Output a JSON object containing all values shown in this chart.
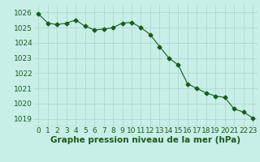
{
  "x": [
    0,
    1,
    2,
    3,
    4,
    5,
    6,
    7,
    8,
    9,
    10,
    11,
    12,
    13,
    14,
    15,
    16,
    17,
    18,
    19,
    20,
    21,
    22,
    23
  ],
  "y": [
    1025.9,
    1025.3,
    1025.2,
    1025.3,
    1025.5,
    1025.1,
    1024.85,
    1024.9,
    1025.0,
    1025.3,
    1025.35,
    1025.0,
    1024.55,
    1023.75,
    1023.0,
    1022.55,
    1021.3,
    1021.0,
    1020.7,
    1020.5,
    1020.4,
    1019.65,
    1019.45,
    1019.05
  ],
  "line_color": "#1a5c1a",
  "marker": "D",
  "marker_size": 2.5,
  "bg_color": "#c8eee8",
  "grid_color": "#aed4ce",
  "xlabel": "Graphe pression niveau de la mer (hPa)",
  "xlabel_fontsize": 7.5,
  "xlabel_color": "#1a5c1a",
  "tick_label_fontsize": 6.5,
  "tick_label_color": "#1a5c1a",
  "ylim": [
    1018.5,
    1026.5
  ],
  "yticks": [
    1019,
    1020,
    1021,
    1022,
    1023,
    1024,
    1025,
    1026
  ],
  "xlim": [
    -0.5,
    23.5
  ],
  "xticks": [
    0,
    1,
    2,
    3,
    4,
    5,
    6,
    7,
    8,
    9,
    10,
    11,
    12,
    13,
    14,
    15,
    16,
    17,
    18,
    19,
    20,
    21,
    22,
    23
  ]
}
